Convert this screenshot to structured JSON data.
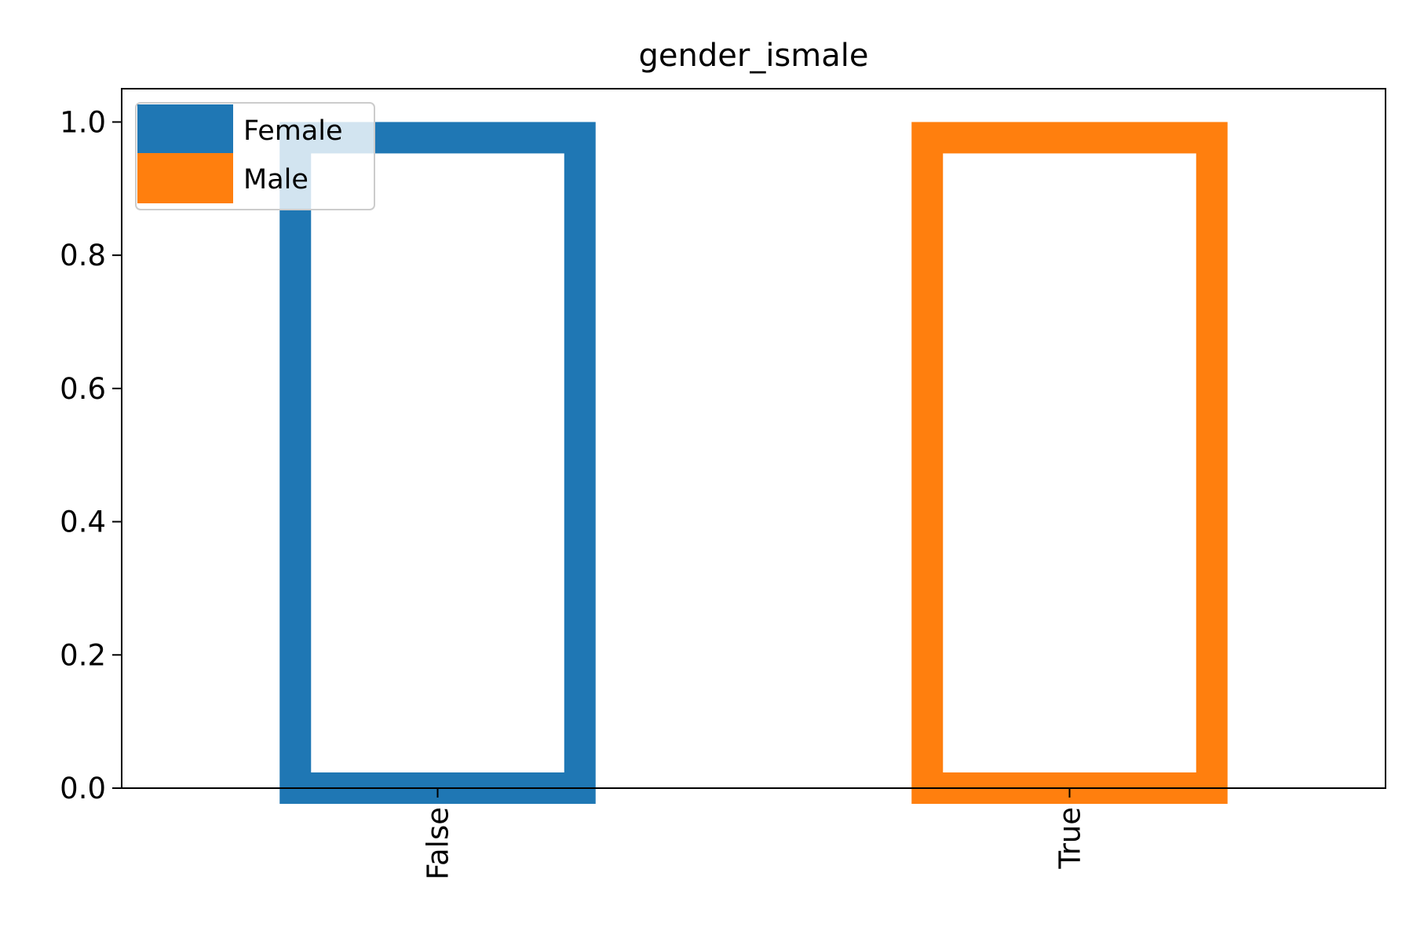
{
  "chart_data": {
    "type": "bar",
    "title": "gender_ismale",
    "xlabel": "",
    "ylabel": "",
    "categories": [
      "False",
      "True"
    ],
    "ylim": [
      0,
      1.05
    ],
    "yticks": [
      "0.0",
      "0.2",
      "0.4",
      "0.6",
      "0.8",
      "1.0"
    ],
    "ytick_values": [
      0,
      0.2,
      0.4,
      0.6,
      0.8,
      1.0
    ],
    "grid": false,
    "legend_position": "top-left",
    "series": [
      {
        "name": "Female",
        "color": "#1f77b4",
        "values": [
          1.0,
          0.0
        ]
      },
      {
        "name": "Male",
        "color": "#ff7f0e",
        "values": [
          0.0,
          1.0
        ]
      }
    ]
  }
}
